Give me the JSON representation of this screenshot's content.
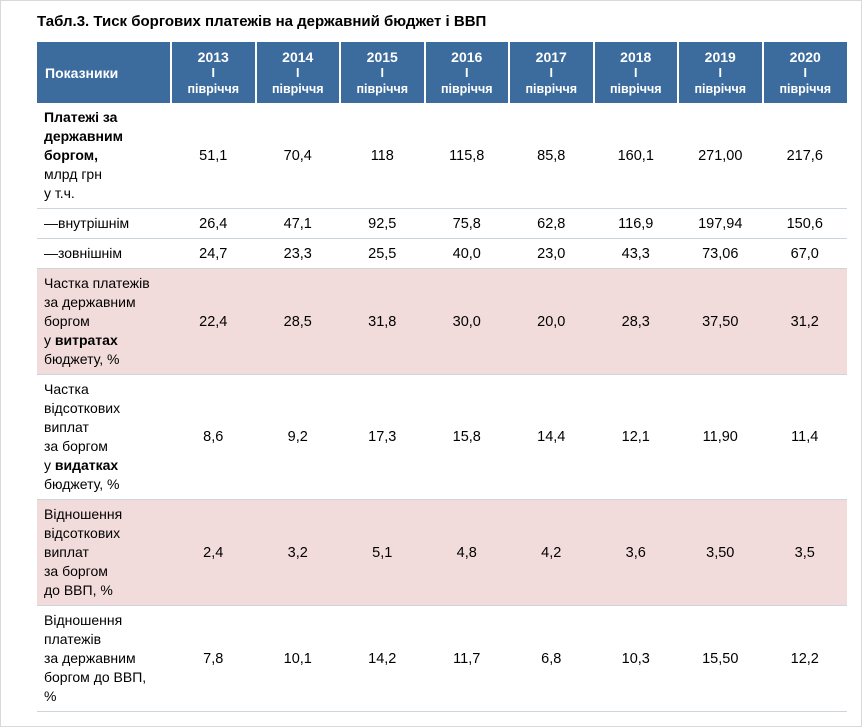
{
  "title": "Табл.3. Тиск боргових платежів на державний бюджет і ВВП",
  "colors": {
    "header_bg": "#3c6c9e",
    "header_text": "#ffffff",
    "shaded_row_bg": "#f2dcdb",
    "row_border": "#ccd5de"
  },
  "table": {
    "header": {
      "indicator_label": "Показники",
      "columns": [
        {
          "year": "2013",
          "line2": "I",
          "line3": "півріччя"
        },
        {
          "year": "2014",
          "line2": "I",
          "line3": "півріччя"
        },
        {
          "year": "2015",
          "line2": "I",
          "line3": "півріччя"
        },
        {
          "year": "2016",
          "line2": "I",
          "line3": "півріччя"
        },
        {
          "year": "2017",
          "line2": "I",
          "line3": "півріччя"
        },
        {
          "year": "2018",
          "line2": "I",
          "line3": "півріччя"
        },
        {
          "year": "2019",
          "line2": "I",
          "line3": "півріччя"
        },
        {
          "year": "2020",
          "line2": "I",
          "line3": "півріччя"
        }
      ]
    },
    "rows": [
      {
        "shaded": false,
        "label": [
          {
            "text": "Платежі за\nдержавним\nборгом,",
            "bold": true
          },
          {
            "text": "\nмлрд грн\nу т.ч.",
            "bold": false
          }
        ],
        "values": [
          "51,1",
          "70,4",
          "118",
          "115,8",
          "85,8",
          "160,1",
          "271,00",
          "217,6"
        ]
      },
      {
        "shaded": false,
        "label": [
          {
            "text": "—внутрішнім",
            "bold": false
          }
        ],
        "values": [
          "26,4",
          "47,1",
          "92,5",
          "75,8",
          "62,8",
          "116,9",
          "197,94",
          "150,6"
        ]
      },
      {
        "shaded": false,
        "label": [
          {
            "text": "—зовнішнім",
            "bold": false
          }
        ],
        "values": [
          "24,7",
          "23,3",
          "25,5",
          "40,0",
          "23,0",
          "43,3",
          "73,06",
          "67,0"
        ]
      },
      {
        "shaded": true,
        "label": [
          {
            "text": "Частка платежів\nза державним\nборгом\nу ",
            "bold": false
          },
          {
            "text": "витратах",
            "bold": true
          },
          {
            "text": "\nбюджету, %",
            "bold": false
          }
        ],
        "values": [
          "22,4",
          "28,5",
          "31,8",
          "30,0",
          "20,0",
          "28,3",
          "37,50",
          "31,2"
        ]
      },
      {
        "shaded": false,
        "label": [
          {
            "text": "Частка\nвідсоткових\nвиплат\nза боргом\nу ",
            "bold": false
          },
          {
            "text": "видатках",
            "bold": true
          },
          {
            "text": "\nбюджету, %",
            "bold": false
          }
        ],
        "values": [
          "8,6",
          "9,2",
          "17,3",
          "15,8",
          "14,4",
          "12,1",
          "11,90",
          "11,4"
        ]
      },
      {
        "shaded": true,
        "label": [
          {
            "text": "Відношення\nвідсоткових\nвиплат\nза боргом\nдо ВВП, %",
            "bold": false
          }
        ],
        "values": [
          "2,4",
          "3,2",
          "5,1",
          "4,8",
          "4,2",
          "3,6",
          "3,50",
          "3,5"
        ]
      },
      {
        "shaded": false,
        "label": [
          {
            "text": "Відношення\nплатежів\nза державним\nборгом до ВВП,\n%",
            "bold": false
          }
        ],
        "values": [
          "7,8",
          "10,1",
          "14,2",
          "11,7",
          "6,8",
          "10,3",
          "15,50",
          "12,2"
        ]
      }
    ]
  }
}
